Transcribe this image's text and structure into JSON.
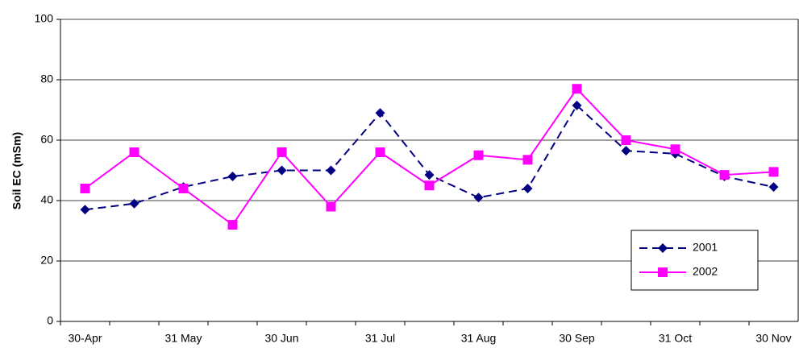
{
  "chart_data": {
    "type": "line",
    "y_label": "Soil EC (mSm)",
    "categories": [
      "30-Apr",
      null,
      "31 May",
      null,
      "30 Jun",
      null,
      "31 Jul",
      null,
      "31 Aug",
      null,
      "30 Sep",
      null,
      "31 Oct",
      null,
      "30 Nov"
    ],
    "series": [
      {
        "name": "2001",
        "color": "#000080",
        "dashed": true,
        "marker": "diamond",
        "values": [
          37,
          39,
          44.5,
          48,
          50,
          50,
          69,
          48.5,
          41,
          44,
          71.5,
          56.5,
          55.5,
          48,
          44.5
        ]
      },
      {
        "name": "2002",
        "color": "#ff00ff",
        "dashed": false,
        "marker": "square",
        "values": [
          44,
          56,
          44,
          32,
          56,
          38,
          56,
          45,
          55,
          53.5,
          77,
          60,
          57,
          48.5,
          49.5
        ]
      }
    ],
    "ylim": [
      0,
      100
    ],
    "yticks": [
      0,
      20,
      40,
      60,
      80,
      100
    ],
    "grid": true,
    "legend": "lower-right"
  }
}
